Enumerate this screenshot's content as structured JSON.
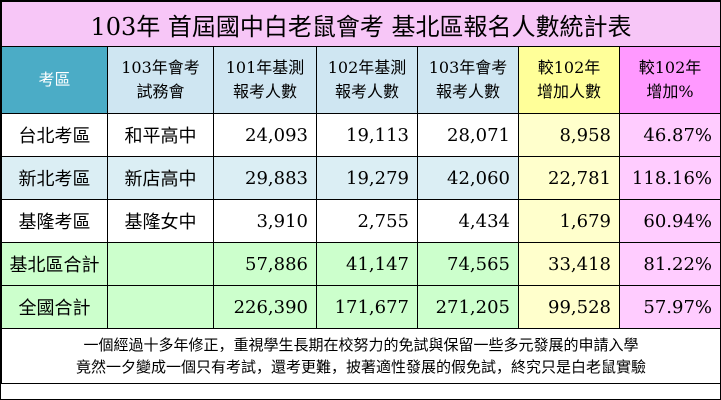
{
  "title": "103年  首屆國中白老鼠會考  基北區報名人數統計表",
  "headers": {
    "district": "考區",
    "exam_office_l1": "103年會考",
    "exam_office_l2": "試務會",
    "y101_l1": "101年基測",
    "y101_l2": "報考人數",
    "y102_l1": "102年基測",
    "y102_l2": "報考人數",
    "y103_l1": "103年會考",
    "y103_l2": "報考人數",
    "inc_l1": "較102年",
    "inc_l2": "增加人數",
    "pct_l1": "較102年",
    "pct_l2": "增加%"
  },
  "rows": [
    {
      "district": "台北考區",
      "office": "和平高中",
      "y101": "24,093",
      "y102": "19,113",
      "y103": "28,071",
      "inc": "8,958",
      "pct": "46.87%"
    },
    {
      "district": "新北考區",
      "office": "新店高中",
      "y101": "29,883",
      "y102": "19,279",
      "y103": "42,060",
      "inc": "22,781",
      "pct": "118.16%"
    },
    {
      "district": "基隆考區",
      "office": "基隆女中",
      "y101": "3,910",
      "y102": "2,755",
      "y103": "4,434",
      "inc": "1,679",
      "pct": "60.94%"
    },
    {
      "district": "基北區合計",
      "office": "",
      "y101": "57,886",
      "y102": "41,147",
      "y103": "74,565",
      "inc": "33,418",
      "pct": "81.22%"
    },
    {
      "district": "全國合計",
      "office": "",
      "y101": "226,390",
      "y102": "171,677",
      "y103": "271,205",
      "inc": "99,528",
      "pct": "57.97%"
    }
  ],
  "note": {
    "line1": "一個經過十多年修正，重視學生長期在校努力的免試與保留一些多元發展的申請入學",
    "line2": "竟然一夕變成一個只有考試，還考更難，披著適性發展的假免試，終究只是白老鼠實驗"
  }
}
